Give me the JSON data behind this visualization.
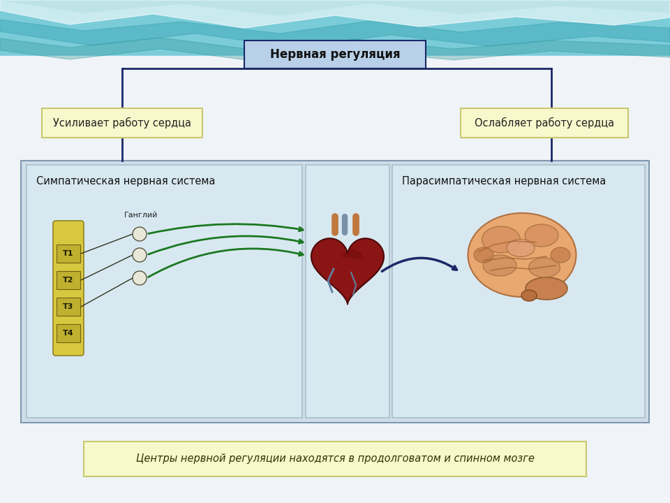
{
  "bg_main": "#e8f2f8",
  "wave_bg": "#70c8d8",
  "title_text": "Нервная регуляция",
  "title_bg": "#b8d0e8",
  "title_border": "#1a2868",
  "left_label": "Усиливает работу сердца",
  "right_label": "Ослабляет работу сердца",
  "label_bg": "#f8f8cc",
  "label_border": "#c8c870",
  "left_panel_title": "Симпатическая нервная система",
  "right_panel_title": "Парасимпатическая нервная система",
  "left_panel_bg": "#d8e8f0",
  "left_panel_border": "#a8c0cc",
  "right_panel_bg": "#d8e8f0",
  "right_panel_border": "#a8c0cc",
  "center_panel_bg": "#d8e8f0",
  "center_panel_border": "#a8c0cc",
  "bottom_text": "Центры нервной регуляции находятся в продолговатом и спинном мозге",
  "bottom_bg": "#f8f8cc",
  "bottom_border": "#c8c870",
  "spine_labels": [
    "T1",
    "T2",
    "T3",
    "T4"
  ],
  "spine_fill": "#d8c840",
  "spine_seg_fill": "#c0b030",
  "ganglion_text": "Ганглий",
  "arrow_green": "#1a7820",
  "arrow_blue": "#1a2868",
  "line_color": "#1a2868"
}
